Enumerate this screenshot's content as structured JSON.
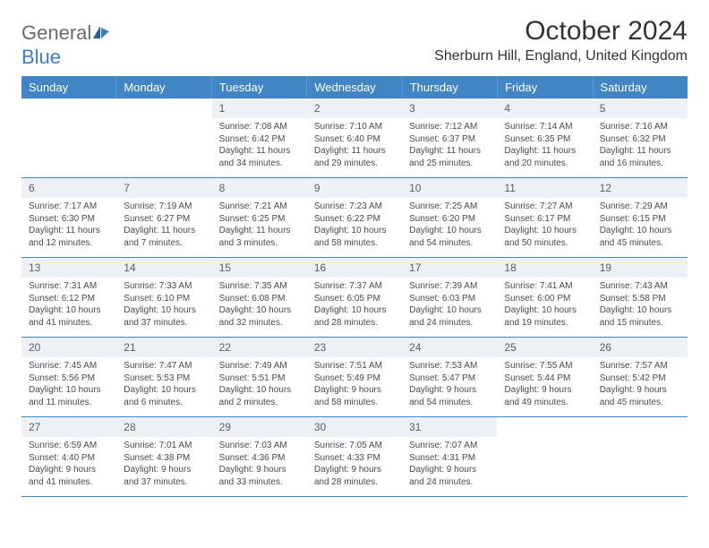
{
  "brand": {
    "word1": "General",
    "word2": "Blue",
    "colors": {
      "general": "#6a6a6a",
      "blue": "#3a7fc0",
      "accent": "#1f5f9c"
    }
  },
  "header": {
    "title": "October 2024",
    "location": "Sherburn Hill, England, United Kingdom"
  },
  "styling": {
    "header_bg": "#4285c5",
    "header_text": "#ffffff",
    "daynum_bg": "#eef1f4",
    "week_border": "#4285c5",
    "body_text": "#4a4a4a",
    "font_family": "Arial",
    "title_fontsize": 30,
    "location_fontsize": 16,
    "dayheader_fontsize": 13,
    "daynum_fontsize": 12,
    "cell_fontsize": 10
  },
  "dayLabels": [
    "Sunday",
    "Monday",
    "Tuesday",
    "Wednesday",
    "Thursday",
    "Friday",
    "Saturday"
  ],
  "weeks": [
    [
      {
        "num": "",
        "sunrise": "",
        "sunset": "",
        "dl1": "",
        "dl2": ""
      },
      {
        "num": "",
        "sunrise": "",
        "sunset": "",
        "dl1": "",
        "dl2": ""
      },
      {
        "num": "1",
        "sunrise": "Sunrise: 7:08 AM",
        "sunset": "Sunset: 6:42 PM",
        "dl1": "Daylight: 11 hours",
        "dl2": "and 34 minutes."
      },
      {
        "num": "2",
        "sunrise": "Sunrise: 7:10 AM",
        "sunset": "Sunset: 6:40 PM",
        "dl1": "Daylight: 11 hours",
        "dl2": "and 29 minutes."
      },
      {
        "num": "3",
        "sunrise": "Sunrise: 7:12 AM",
        "sunset": "Sunset: 6:37 PM",
        "dl1": "Daylight: 11 hours",
        "dl2": "and 25 minutes."
      },
      {
        "num": "4",
        "sunrise": "Sunrise: 7:14 AM",
        "sunset": "Sunset: 6:35 PM",
        "dl1": "Daylight: 11 hours",
        "dl2": "and 20 minutes."
      },
      {
        "num": "5",
        "sunrise": "Sunrise: 7:16 AM",
        "sunset": "Sunset: 6:32 PM",
        "dl1": "Daylight: 11 hours",
        "dl2": "and 16 minutes."
      }
    ],
    [
      {
        "num": "6",
        "sunrise": "Sunrise: 7:17 AM",
        "sunset": "Sunset: 6:30 PM",
        "dl1": "Daylight: 11 hours",
        "dl2": "and 12 minutes."
      },
      {
        "num": "7",
        "sunrise": "Sunrise: 7:19 AM",
        "sunset": "Sunset: 6:27 PM",
        "dl1": "Daylight: 11 hours",
        "dl2": "and 7 minutes."
      },
      {
        "num": "8",
        "sunrise": "Sunrise: 7:21 AM",
        "sunset": "Sunset: 6:25 PM",
        "dl1": "Daylight: 11 hours",
        "dl2": "and 3 minutes."
      },
      {
        "num": "9",
        "sunrise": "Sunrise: 7:23 AM",
        "sunset": "Sunset: 6:22 PM",
        "dl1": "Daylight: 10 hours",
        "dl2": "and 58 minutes."
      },
      {
        "num": "10",
        "sunrise": "Sunrise: 7:25 AM",
        "sunset": "Sunset: 6:20 PM",
        "dl1": "Daylight: 10 hours",
        "dl2": "and 54 minutes."
      },
      {
        "num": "11",
        "sunrise": "Sunrise: 7:27 AM",
        "sunset": "Sunset: 6:17 PM",
        "dl1": "Daylight: 10 hours",
        "dl2": "and 50 minutes."
      },
      {
        "num": "12",
        "sunrise": "Sunrise: 7:29 AM",
        "sunset": "Sunset: 6:15 PM",
        "dl1": "Daylight: 10 hours",
        "dl2": "and 45 minutes."
      }
    ],
    [
      {
        "num": "13",
        "sunrise": "Sunrise: 7:31 AM",
        "sunset": "Sunset: 6:12 PM",
        "dl1": "Daylight: 10 hours",
        "dl2": "and 41 minutes."
      },
      {
        "num": "14",
        "sunrise": "Sunrise: 7:33 AM",
        "sunset": "Sunset: 6:10 PM",
        "dl1": "Daylight: 10 hours",
        "dl2": "and 37 minutes."
      },
      {
        "num": "15",
        "sunrise": "Sunrise: 7:35 AM",
        "sunset": "Sunset: 6:08 PM",
        "dl1": "Daylight: 10 hours",
        "dl2": "and 32 minutes."
      },
      {
        "num": "16",
        "sunrise": "Sunrise: 7:37 AM",
        "sunset": "Sunset: 6:05 PM",
        "dl1": "Daylight: 10 hours",
        "dl2": "and 28 minutes."
      },
      {
        "num": "17",
        "sunrise": "Sunrise: 7:39 AM",
        "sunset": "Sunset: 6:03 PM",
        "dl1": "Daylight: 10 hours",
        "dl2": "and 24 minutes."
      },
      {
        "num": "18",
        "sunrise": "Sunrise: 7:41 AM",
        "sunset": "Sunset: 6:00 PM",
        "dl1": "Daylight: 10 hours",
        "dl2": "and 19 minutes."
      },
      {
        "num": "19",
        "sunrise": "Sunrise: 7:43 AM",
        "sunset": "Sunset: 5:58 PM",
        "dl1": "Daylight: 10 hours",
        "dl2": "and 15 minutes."
      }
    ],
    [
      {
        "num": "20",
        "sunrise": "Sunrise: 7:45 AM",
        "sunset": "Sunset: 5:56 PM",
        "dl1": "Daylight: 10 hours",
        "dl2": "and 11 minutes."
      },
      {
        "num": "21",
        "sunrise": "Sunrise: 7:47 AM",
        "sunset": "Sunset: 5:53 PM",
        "dl1": "Daylight: 10 hours",
        "dl2": "and 6 minutes."
      },
      {
        "num": "22",
        "sunrise": "Sunrise: 7:49 AM",
        "sunset": "Sunset: 5:51 PM",
        "dl1": "Daylight: 10 hours",
        "dl2": "and 2 minutes."
      },
      {
        "num": "23",
        "sunrise": "Sunrise: 7:51 AM",
        "sunset": "Sunset: 5:49 PM",
        "dl1": "Daylight: 9 hours",
        "dl2": "and 58 minutes."
      },
      {
        "num": "24",
        "sunrise": "Sunrise: 7:53 AM",
        "sunset": "Sunset: 5:47 PM",
        "dl1": "Daylight: 9 hours",
        "dl2": "and 54 minutes."
      },
      {
        "num": "25",
        "sunrise": "Sunrise: 7:55 AM",
        "sunset": "Sunset: 5:44 PM",
        "dl1": "Daylight: 9 hours",
        "dl2": "and 49 minutes."
      },
      {
        "num": "26",
        "sunrise": "Sunrise: 7:57 AM",
        "sunset": "Sunset: 5:42 PM",
        "dl1": "Daylight: 9 hours",
        "dl2": "and 45 minutes."
      }
    ],
    [
      {
        "num": "27",
        "sunrise": "Sunrise: 6:59 AM",
        "sunset": "Sunset: 4:40 PM",
        "dl1": "Daylight: 9 hours",
        "dl2": "and 41 minutes."
      },
      {
        "num": "28",
        "sunrise": "Sunrise: 7:01 AM",
        "sunset": "Sunset: 4:38 PM",
        "dl1": "Daylight: 9 hours",
        "dl2": "and 37 minutes."
      },
      {
        "num": "29",
        "sunrise": "Sunrise: 7:03 AM",
        "sunset": "Sunset: 4:36 PM",
        "dl1": "Daylight: 9 hours",
        "dl2": "and 33 minutes."
      },
      {
        "num": "30",
        "sunrise": "Sunrise: 7:05 AM",
        "sunset": "Sunset: 4:33 PM",
        "dl1": "Daylight: 9 hours",
        "dl2": "and 28 minutes."
      },
      {
        "num": "31",
        "sunrise": "Sunrise: 7:07 AM",
        "sunset": "Sunset: 4:31 PM",
        "dl1": "Daylight: 9 hours",
        "dl2": "and 24 minutes."
      },
      {
        "num": "",
        "sunrise": "",
        "sunset": "",
        "dl1": "",
        "dl2": ""
      },
      {
        "num": "",
        "sunrise": "",
        "sunset": "",
        "dl1": "",
        "dl2": ""
      }
    ]
  ]
}
